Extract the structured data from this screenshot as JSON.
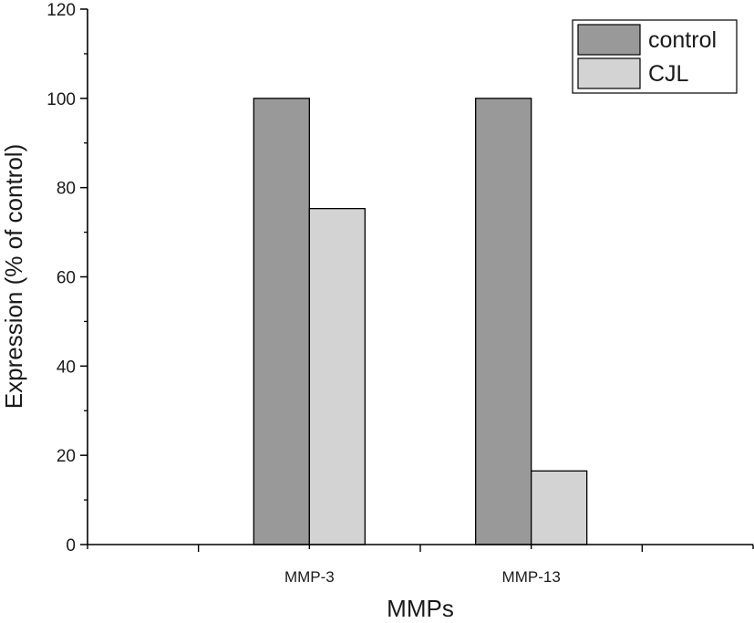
{
  "chart_data": {
    "type": "bar",
    "title": "",
    "xlabel": "MMPs",
    "ylabel": "Expression (% of control)",
    "categories": [
      "MMP-3",
      "MMP-13"
    ],
    "series": [
      {
        "name": "control",
        "values": [
          100,
          100
        ],
        "color": "#999999"
      },
      {
        "name": "CJL",
        "values": [
          75.3,
          16.5
        ],
        "color": "#d3d3d3"
      }
    ],
    "ylim": [
      0,
      120
    ],
    "yticks": [
      0,
      20,
      40,
      60,
      80,
      100,
      120
    ],
    "grid": false,
    "legend": "top-right"
  }
}
